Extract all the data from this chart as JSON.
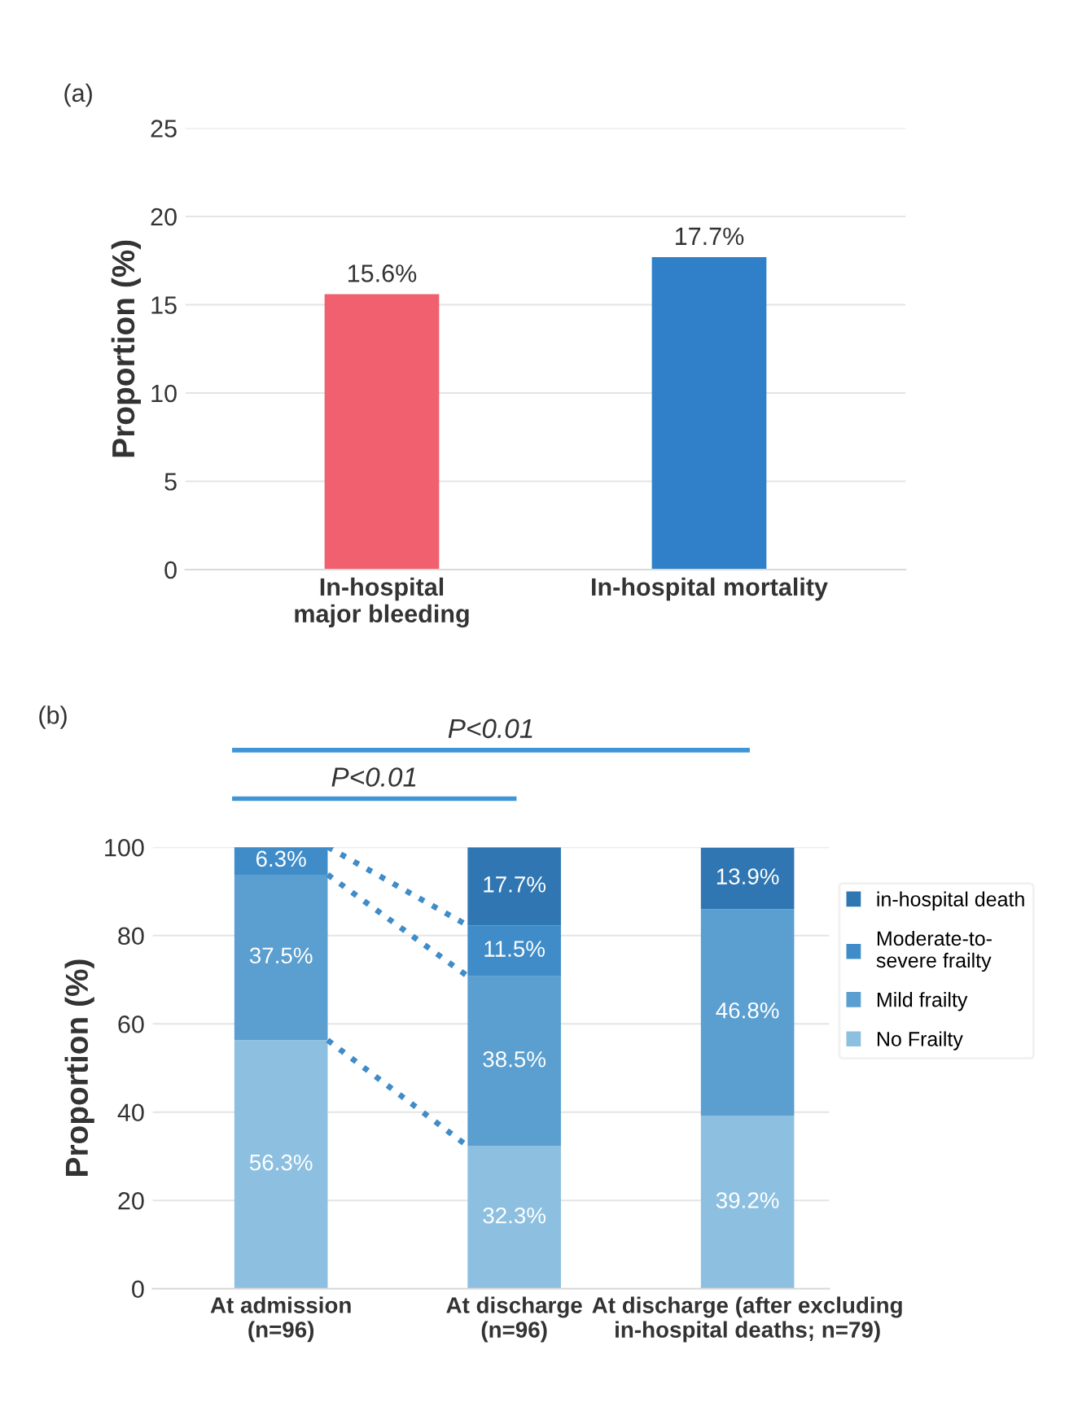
{
  "chart_data": [
    {
      "type": "bar",
      "title": "(a)",
      "ylabel": "Proportion (%)",
      "categories": [
        "In-hospital\nmajor bleeding",
        "In-hospital mortality"
      ],
      "values": [
        15.6,
        17.7
      ],
      "colors": [
        "#f0606e",
        "#2f80c8"
      ],
      "value_labels": [
        "15.6%",
        "17.7%"
      ],
      "ylim": [
        0,
        25
      ],
      "yticks": [
        0,
        5,
        10,
        15,
        20,
        25
      ],
      "grid": "y"
    },
    {
      "type": "bar",
      "title": "(b)",
      "ylabel": "Proportion (%)",
      "stacked": true,
      "categories": [
        "At admission\n(n=96)",
        "At discharge\n(n=96)",
        "At discharge (after excluding\nin-hospital deaths; n=79)"
      ],
      "series": [
        {
          "name": "No Frailty",
          "color": "#8dc0e0",
          "values": [
            56.3,
            32.3,
            39.2
          ],
          "value_labels": [
            "56.3%",
            "32.3%",
            "39.2%"
          ]
        },
        {
          "name": "Mild frailty",
          "color": "#5a9fd0",
          "values": [
            37.5,
            38.5,
            46.8
          ],
          "value_labels": [
            "37.5%",
            "38.5%",
            "46.8%"
          ]
        },
        {
          "name": "Moderate-to-\nsevere frailty",
          "color": "#3f8cc8",
          "values": [
            6.3,
            11.5,
            null
          ],
          "value_labels": [
            "6.3%",
            "11.5%",
            null
          ]
        },
        {
          "name": "in-hospital death",
          "color": "#2f76b2",
          "values": [
            null,
            17.7,
            13.9
          ],
          "value_labels": [
            null,
            "17.7%",
            "13.9%"
          ]
        }
      ],
      "annotations": [
        "P<0.01",
        "P<0.01"
      ],
      "ylim": [
        0,
        100
      ],
      "yticks": [
        0,
        20,
        40,
        60,
        80,
        100
      ],
      "grid": "y",
      "legend": "right"
    }
  ]
}
